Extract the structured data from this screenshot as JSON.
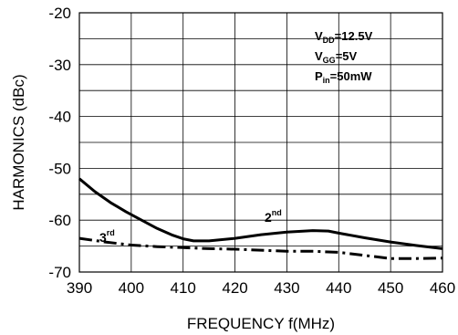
{
  "chart_data": {
    "type": "line",
    "xlabel": "FREQUENCY f(MHz)",
    "ylabel": "HARMONICS (dBc)",
    "xlim": [
      390,
      460
    ],
    "ylim": [
      -70,
      -20
    ],
    "x_ticks": [
      390,
      400,
      410,
      420,
      430,
      440,
      450,
      460
    ],
    "y_ticks": [
      -20,
      -30,
      -40,
      -50,
      -60,
      -70
    ],
    "grid": true,
    "series": [
      {
        "name": "2nd",
        "style": "solid",
        "x": [
          390,
          393,
          396,
          399,
          402,
          405,
          408,
          410,
          412,
          415,
          420,
          425,
          430,
          435,
          438,
          440,
          445,
          450,
          455,
          460
        ],
        "y": [
          -52.0,
          -54.5,
          -56.6,
          -58.4,
          -60.0,
          -61.6,
          -62.9,
          -63.6,
          -64.0,
          -64.0,
          -63.5,
          -62.8,
          -62.3,
          -62.0,
          -62.1,
          -62.5,
          -63.4,
          -64.2,
          -64.9,
          -65.5
        ]
      },
      {
        "name": "3rd",
        "style": "dash-dot",
        "x": [
          390,
          395,
          400,
          405,
          410,
          415,
          420,
          425,
          430,
          435,
          440,
          445,
          450,
          455,
          460
        ],
        "y": [
          -63.5,
          -64.2,
          -64.8,
          -65.1,
          -65.3,
          -65.5,
          -65.6,
          -65.8,
          -66.0,
          -66.0,
          -66.2,
          -66.8,
          -67.4,
          -67.4,
          -67.3
        ]
      }
    ],
    "annotations": {
      "vdd_main": "V",
      "vdd_sub": "DD",
      "vdd_val": "=12.5V",
      "vgg_main": "V",
      "vgg_sub": "GG",
      "vgg_val": "=5V",
      "pin_main": "P",
      "pin_sub": "in",
      "pin_val": "=50mW",
      "label_2nd_main": "2",
      "label_2nd_sup": "nd",
      "label_3rd_main": "3",
      "label_3rd_sup": "rd"
    }
  }
}
